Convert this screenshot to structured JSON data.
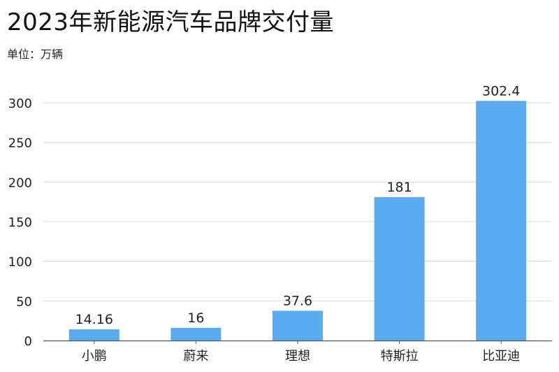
{
  "chart_data": {
    "type": "bar",
    "title": "2023年新能源汽车品牌交付量",
    "subtitle": "单位：万辆",
    "categories": [
      "小鹏",
      "蔚来",
      "理想",
      "特斯拉",
      "比亚迪"
    ],
    "values": [
      14.16,
      16,
      37.6,
      181,
      302.4
    ],
    "value_labels": [
      "14.16",
      "16",
      "37.6",
      "181",
      "302.4"
    ],
    "xlabel": "",
    "ylabel": "",
    "ylim": [
      0,
      300
    ],
    "yticks": [
      0,
      50,
      100,
      150,
      200,
      250,
      300
    ],
    "grid": true,
    "legend": "none",
    "bar_color": "#5aabf0"
  }
}
